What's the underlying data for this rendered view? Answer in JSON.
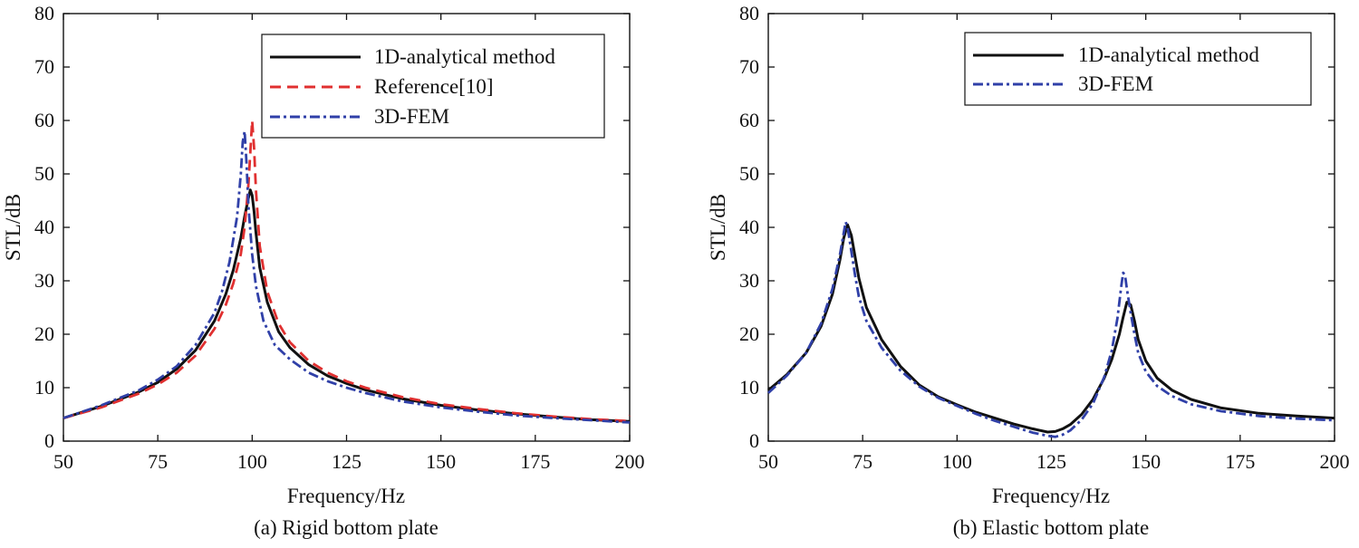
{
  "chart_data": [
    {
      "type": "line",
      "caption": "(a) Rigid bottom plate",
      "xlabel": "Frequency/Hz",
      "ylabel": "STL/dB",
      "xlim": [
        50,
        200
      ],
      "ylim": [
        0,
        80
      ],
      "xticks": [
        50,
        75,
        100,
        125,
        150,
        175,
        200
      ],
      "yticks": [
        0,
        10,
        20,
        30,
        40,
        50,
        60,
        70,
        80
      ],
      "legend_position": "top-right",
      "series": [
        {
          "name": "1D-analytical method",
          "color": "#111111",
          "style": "solid",
          "x": [
            50,
            60,
            70,
            75,
            80,
            85,
            90,
            93,
            95,
            97,
            98,
            99,
            99.5,
            100,
            100.5,
            101,
            102,
            104,
            107,
            110,
            115,
            120,
            125,
            130,
            140,
            150,
            160,
            170,
            180,
            190,
            200
          ],
          "y": [
            4.3,
            6.5,
            9.2,
            11.0,
            13.5,
            17.0,
            22.5,
            27.5,
            32.0,
            38.0,
            42.0,
            45.5,
            47.0,
            46.0,
            43.0,
            39.0,
            32.5,
            26.0,
            20.5,
            17.5,
            14.3,
            12.2,
            10.8,
            9.6,
            7.9,
            6.7,
            5.8,
            5.1,
            4.5,
            4.0,
            3.7
          ]
        },
        {
          "name": "Reference[10]",
          "color": "#e03030",
          "style": "dashed",
          "x": [
            50,
            60,
            70,
            75,
            80,
            85,
            90,
            93,
            95,
            97,
            98,
            99,
            99.5,
            100,
            100.5,
            101,
            102,
            104,
            107,
            110,
            115,
            120,
            125,
            130,
            140,
            150,
            160,
            170,
            180,
            190,
            199,
            200
          ],
          "y": [
            4.3,
            6.3,
            8.9,
            10.6,
            12.8,
            16.0,
            21.0,
            25.5,
            29.5,
            35.0,
            40.0,
            48.0,
            54.0,
            60.0,
            55.0,
            47.0,
            36.5,
            28.0,
            22.0,
            18.5,
            15.0,
            12.8,
            11.2,
            10.0,
            8.2,
            6.9,
            6.0,
            5.2,
            4.6,
            4.1,
            3.8,
            4.8
          ]
        },
        {
          "name": "3D-FEM",
          "color": "#3040a8",
          "style": "dashdot",
          "x": [
            50,
            60,
            70,
            75,
            80,
            85,
            90,
            92,
            94,
            96,
            97,
            97.5,
            98,
            98.5,
            99,
            100,
            101,
            103,
            106,
            110,
            115,
            120,
            125,
            130,
            140,
            150,
            160,
            170,
            180,
            190,
            200
          ],
          "y": [
            4.3,
            6.7,
            9.5,
            11.5,
            14.0,
            18.0,
            24.0,
            28.0,
            33.5,
            42.0,
            50.0,
            56.0,
            58.0,
            52.0,
            44.0,
            35.0,
            29.0,
            22.5,
            18.0,
            15.3,
            12.8,
            11.2,
            10.0,
            9.0,
            7.4,
            6.3,
            5.5,
            4.8,
            4.3,
            3.9,
            3.5
          ]
        }
      ]
    },
    {
      "type": "line",
      "caption": "(b) Elastic bottom plate",
      "xlabel": "Frequency/Hz",
      "ylabel": "STL/dB",
      "xlim": [
        50,
        200
      ],
      "ylim": [
        0,
        80
      ],
      "xticks": [
        50,
        75,
        100,
        125,
        150,
        175,
        200
      ],
      "yticks": [
        0,
        10,
        20,
        30,
        40,
        50,
        60,
        70,
        80
      ],
      "legend_position": "top-right",
      "series": [
        {
          "name": "1D-analytical method",
          "color": "#111111",
          "style": "solid",
          "x": [
            50,
            55,
            60,
            64,
            67,
            69,
            70,
            71,
            72,
            73,
            74,
            76,
            80,
            85,
            90,
            95,
            100,
            105,
            110,
            115,
            120,
            124,
            126,
            128,
            130,
            133,
            136,
            139,
            141,
            143,
            144,
            145,
            146,
            147,
            148,
            150,
            153,
            157,
            162,
            170,
            180,
            190,
            200
          ],
          "y": [
            9.5,
            12.5,
            16.5,
            21.5,
            27.5,
            34.0,
            38.0,
            40.5,
            38.5,
            34.5,
            30.5,
            25.0,
            19.0,
            14.0,
            10.5,
            8.3,
            6.8,
            5.4,
            4.3,
            3.2,
            2.3,
            1.7,
            1.8,
            2.3,
            3.1,
            5.0,
            7.8,
            11.8,
            15.3,
            20.0,
            23.2,
            26.0,
            25.5,
            22.5,
            19.0,
            15.0,
            11.8,
            9.5,
            7.8,
            6.2,
            5.2,
            4.7,
            4.3
          ]
        },
        {
          "name": "3D-FEM",
          "color": "#3040a8",
          "style": "dashdot",
          "x": [
            50,
            55,
            60,
            64,
            67,
            69,
            70,
            70.5,
            71,
            72,
            73,
            74,
            76,
            80,
            85,
            90,
            95,
            100,
            105,
            110,
            115,
            120,
            124,
            126,
            128,
            130,
            133,
            136,
            139,
            141,
            142.5,
            143.5,
            144,
            144.5,
            145,
            146,
            147,
            148,
            150,
            153,
            157,
            162,
            170,
            180,
            190,
            200
          ],
          "y": [
            9.0,
            12.3,
            16.5,
            22.0,
            28.5,
            35.0,
            39.0,
            41.0,
            40.0,
            35.5,
            31.0,
            27.0,
            22.5,
            17.5,
            13.2,
            10.2,
            8.1,
            6.6,
            5.1,
            3.8,
            2.7,
            1.6,
            1.0,
            0.8,
            1.2,
            2.0,
            4.0,
            7.0,
            12.0,
            17.0,
            23.0,
            29.0,
            31.5,
            31.0,
            28.5,
            24.0,
            20.0,
            16.5,
            13.0,
            10.3,
            8.4,
            6.9,
            5.6,
            4.7,
            4.2,
            3.9
          ]
        }
      ]
    }
  ]
}
